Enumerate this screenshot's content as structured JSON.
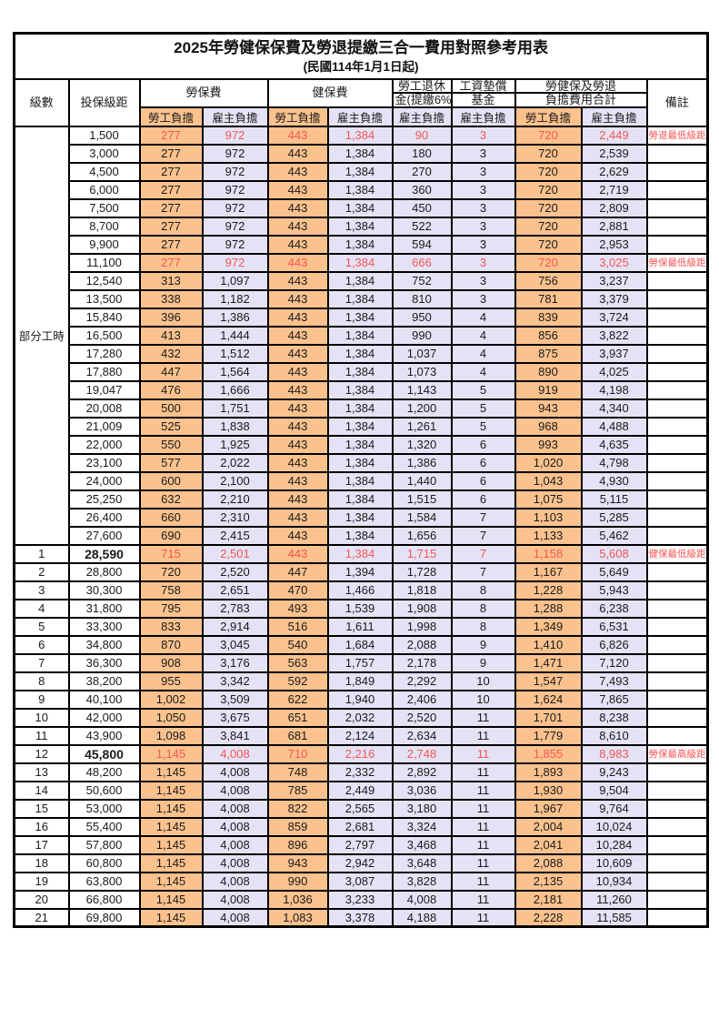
{
  "title": "2025年勞健保保費及勞退提繳三合一費用對照參考用表",
  "subtitle": "(民國114年1月1日起)",
  "header": {
    "level": "級數",
    "bracket": "投保級距",
    "labor_fee": "勞保費",
    "health_fee": "健保費",
    "pension_line1": "勞工退休",
    "pension_line2": "金(提繳6%)",
    "wage_fund_line1": "工資墊償",
    "wage_fund_line2": "基金",
    "total_line1": "勞健保及勞退",
    "total_line2": "負擔費用合計",
    "remark": "備註",
    "employee_share": "勞工負擔",
    "employer_share": "雇主負擔"
  },
  "part_time_label": "部分工時",
  "colors": {
    "employee_bg": "#fbc28e",
    "employer_bg": "#e3e3f5",
    "highlight_red": "#f85555",
    "border": "#000000"
  },
  "rows": [
    {
      "level": "",
      "bracket": "1,500",
      "cells": [
        "277",
        "972",
        "443",
        "1,384",
        "90",
        "3",
        "720",
        "2,449"
      ],
      "note": "勞退最低級距",
      "red": true,
      "bold": false
    },
    {
      "level": "",
      "bracket": "3,000",
      "cells": [
        "277",
        "972",
        "443",
        "1,384",
        "180",
        "3",
        "720",
        "2,539"
      ],
      "note": "",
      "red": false,
      "bold": false
    },
    {
      "level": "",
      "bracket": "4,500",
      "cells": [
        "277",
        "972",
        "443",
        "1,384",
        "270",
        "3",
        "720",
        "2,629"
      ],
      "note": "",
      "red": false,
      "bold": false
    },
    {
      "level": "",
      "bracket": "6,000",
      "cells": [
        "277",
        "972",
        "443",
        "1,384",
        "360",
        "3",
        "720",
        "2,719"
      ],
      "note": "",
      "red": false,
      "bold": false
    },
    {
      "level": "",
      "bracket": "7,500",
      "cells": [
        "277",
        "972",
        "443",
        "1,384",
        "450",
        "3",
        "720",
        "2,809"
      ],
      "note": "",
      "red": false,
      "bold": false
    },
    {
      "level": "",
      "bracket": "8,700",
      "cells": [
        "277",
        "972",
        "443",
        "1,384",
        "522",
        "3",
        "720",
        "2,881"
      ],
      "note": "",
      "red": false,
      "bold": false
    },
    {
      "level": "",
      "bracket": "9,900",
      "cells": [
        "277",
        "972",
        "443",
        "1,384",
        "594",
        "3",
        "720",
        "2,953"
      ],
      "note": "",
      "red": false,
      "bold": false
    },
    {
      "level": "",
      "bracket": "11,100",
      "cells": [
        "277",
        "972",
        "443",
        "1,384",
        "666",
        "3",
        "720",
        "3,025"
      ],
      "note": "勞保最低級距",
      "red": true,
      "bold": false
    },
    {
      "level": "",
      "bracket": "12,540",
      "cells": [
        "313",
        "1,097",
        "443",
        "1,384",
        "752",
        "3",
        "756",
        "3,237"
      ],
      "note": "",
      "red": false,
      "bold": false
    },
    {
      "level": "",
      "bracket": "13,500",
      "cells": [
        "338",
        "1,182",
        "443",
        "1,384",
        "810",
        "3",
        "781",
        "3,379"
      ],
      "note": "",
      "red": false,
      "bold": false
    },
    {
      "level": "",
      "bracket": "15,840",
      "cells": [
        "396",
        "1,386",
        "443",
        "1,384",
        "950",
        "4",
        "839",
        "3,724"
      ],
      "note": "",
      "red": false,
      "bold": false
    },
    {
      "level": "",
      "bracket": "16,500",
      "cells": [
        "413",
        "1,444",
        "443",
        "1,384",
        "990",
        "4",
        "856",
        "3,822"
      ],
      "note": "",
      "red": false,
      "bold": false
    },
    {
      "level": "",
      "bracket": "17,280",
      "cells": [
        "432",
        "1,512",
        "443",
        "1,384",
        "1,037",
        "4",
        "875",
        "3,937"
      ],
      "note": "",
      "red": false,
      "bold": false
    },
    {
      "level": "",
      "bracket": "17,880",
      "cells": [
        "447",
        "1,564",
        "443",
        "1,384",
        "1,073",
        "4",
        "890",
        "4,025"
      ],
      "note": "",
      "red": false,
      "bold": false
    },
    {
      "level": "",
      "bracket": "19,047",
      "cells": [
        "476",
        "1,666",
        "443",
        "1,384",
        "1,143",
        "5",
        "919",
        "4,198"
      ],
      "note": "",
      "red": false,
      "bold": false
    },
    {
      "level": "",
      "bracket": "20,008",
      "cells": [
        "500",
        "1,751",
        "443",
        "1,384",
        "1,200",
        "5",
        "943",
        "4,340"
      ],
      "note": "",
      "red": false,
      "bold": false
    },
    {
      "level": "",
      "bracket": "21,009",
      "cells": [
        "525",
        "1,838",
        "443",
        "1,384",
        "1,261",
        "5",
        "968",
        "4,488"
      ],
      "note": "",
      "red": false,
      "bold": false
    },
    {
      "level": "",
      "bracket": "22,000",
      "cells": [
        "550",
        "1,925",
        "443",
        "1,384",
        "1,320",
        "6",
        "993",
        "4,635"
      ],
      "note": "",
      "red": false,
      "bold": false
    },
    {
      "level": "",
      "bracket": "23,100",
      "cells": [
        "577",
        "2,022",
        "443",
        "1,384",
        "1,386",
        "6",
        "1,020",
        "4,798"
      ],
      "note": "",
      "red": false,
      "bold": false
    },
    {
      "level": "",
      "bracket": "24,000",
      "cells": [
        "600",
        "2,100",
        "443",
        "1,384",
        "1,440",
        "6",
        "1,043",
        "4,930"
      ],
      "note": "",
      "red": false,
      "bold": false
    },
    {
      "level": "",
      "bracket": "25,250",
      "cells": [
        "632",
        "2,210",
        "443",
        "1,384",
        "1,515",
        "6",
        "1,075",
        "5,115"
      ],
      "note": "",
      "red": false,
      "bold": false
    },
    {
      "level": "",
      "bracket": "26,400",
      "cells": [
        "660",
        "2,310",
        "443",
        "1,384",
        "1,584",
        "7",
        "1,103",
        "5,285"
      ],
      "note": "",
      "red": false,
      "bold": false
    },
    {
      "level": "",
      "bracket": "27,600",
      "cells": [
        "690",
        "2,415",
        "443",
        "1,384",
        "1,656",
        "7",
        "1,133",
        "5,462"
      ],
      "note": "",
      "red": false,
      "bold": false
    },
    {
      "level": "1",
      "bracket": "28,590",
      "cells": [
        "715",
        "2,501",
        "443",
        "1,384",
        "1,715",
        "7",
        "1,158",
        "5,608"
      ],
      "note": "健保最低級距",
      "red": true,
      "bold": true
    },
    {
      "level": "2",
      "bracket": "28,800",
      "cells": [
        "720",
        "2,520",
        "447",
        "1,394",
        "1,728",
        "7",
        "1,167",
        "5,649"
      ],
      "note": "",
      "red": false,
      "bold": false
    },
    {
      "level": "3",
      "bracket": "30,300",
      "cells": [
        "758",
        "2,651",
        "470",
        "1,466",
        "1,818",
        "8",
        "1,228",
        "5,943"
      ],
      "note": "",
      "red": false,
      "bold": false
    },
    {
      "level": "4",
      "bracket": "31,800",
      "cells": [
        "795",
        "2,783",
        "493",
        "1,539",
        "1,908",
        "8",
        "1,288",
        "6,238"
      ],
      "note": "",
      "red": false,
      "bold": false
    },
    {
      "level": "5",
      "bracket": "33,300",
      "cells": [
        "833",
        "2,914",
        "516",
        "1,611",
        "1,998",
        "8",
        "1,349",
        "6,531"
      ],
      "note": "",
      "red": false,
      "bold": false
    },
    {
      "level": "6",
      "bracket": "34,800",
      "cells": [
        "870",
        "3,045",
        "540",
        "1,684",
        "2,088",
        "9",
        "1,410",
        "6,826"
      ],
      "note": "",
      "red": false,
      "bold": false
    },
    {
      "level": "7",
      "bracket": "36,300",
      "cells": [
        "908",
        "3,176",
        "563",
        "1,757",
        "2,178",
        "9",
        "1,471",
        "7,120"
      ],
      "note": "",
      "red": false,
      "bold": false
    },
    {
      "level": "8",
      "bracket": "38,200",
      "cells": [
        "955",
        "3,342",
        "592",
        "1,849",
        "2,292",
        "10",
        "1,547",
        "7,493"
      ],
      "note": "",
      "red": false,
      "bold": false
    },
    {
      "level": "9",
      "bracket": "40,100",
      "cells": [
        "1,002",
        "3,509",
        "622",
        "1,940",
        "2,406",
        "10",
        "1,624",
        "7,865"
      ],
      "note": "",
      "red": false,
      "bold": false
    },
    {
      "level": "10",
      "bracket": "42,000",
      "cells": [
        "1,050",
        "3,675",
        "651",
        "2,032",
        "2,520",
        "11",
        "1,701",
        "8,238"
      ],
      "note": "",
      "red": false,
      "bold": false
    },
    {
      "level": "11",
      "bracket": "43,900",
      "cells": [
        "1,098",
        "3,841",
        "681",
        "2,124",
        "2,634",
        "11",
        "1,779",
        "8,610"
      ],
      "note": "",
      "red": false,
      "bold": false
    },
    {
      "level": "12",
      "bracket": "45,800",
      "cells": [
        "1,145",
        "4,008",
        "710",
        "2,216",
        "2,748",
        "11",
        "1,855",
        "8,983"
      ],
      "note": "勞保最高級距",
      "red": true,
      "bold": true
    },
    {
      "level": "13",
      "bracket": "48,200",
      "cells": [
        "1,145",
        "4,008",
        "748",
        "2,332",
        "2,892",
        "11",
        "1,893",
        "9,243"
      ],
      "note": "",
      "red": false,
      "bold": false
    },
    {
      "level": "14",
      "bracket": "50,600",
      "cells": [
        "1,145",
        "4,008",
        "785",
        "2,449",
        "3,036",
        "11",
        "1,930",
        "9,504"
      ],
      "note": "",
      "red": false,
      "bold": false
    },
    {
      "level": "15",
      "bracket": "53,000",
      "cells": [
        "1,145",
        "4,008",
        "822",
        "2,565",
        "3,180",
        "11",
        "1,967",
        "9,764"
      ],
      "note": "",
      "red": false,
      "bold": false
    },
    {
      "level": "16",
      "bracket": "55,400",
      "cells": [
        "1,145",
        "4,008",
        "859",
        "2,681",
        "3,324",
        "11",
        "2,004",
        "10,024"
      ],
      "note": "",
      "red": false,
      "bold": false
    },
    {
      "level": "17",
      "bracket": "57,800",
      "cells": [
        "1,145",
        "4,008",
        "896",
        "2,797",
        "3,468",
        "11",
        "2,041",
        "10,284"
      ],
      "note": "",
      "red": false,
      "bold": false
    },
    {
      "level": "18",
      "bracket": "60,800",
      "cells": [
        "1,145",
        "4,008",
        "943",
        "2,942",
        "3,648",
        "11",
        "2,088",
        "10,609"
      ],
      "note": "",
      "red": false,
      "bold": false
    },
    {
      "level": "19",
      "bracket": "63,800",
      "cells": [
        "1,145",
        "4,008",
        "990",
        "3,087",
        "3,828",
        "11",
        "2,135",
        "10,934"
      ],
      "note": "",
      "red": false,
      "bold": false
    },
    {
      "level": "20",
      "bracket": "66,800",
      "cells": [
        "1,145",
        "4,008",
        "1,036",
        "3,233",
        "4,008",
        "11",
        "2,181",
        "11,260"
      ],
      "note": "",
      "red": false,
      "bold": false
    },
    {
      "level": "21",
      "bracket": "69,800",
      "cells": [
        "1,145",
        "4,008",
        "1,083",
        "3,378",
        "4,188",
        "11",
        "2,228",
        "11,585"
      ],
      "note": "",
      "red": false,
      "bold": false
    }
  ]
}
